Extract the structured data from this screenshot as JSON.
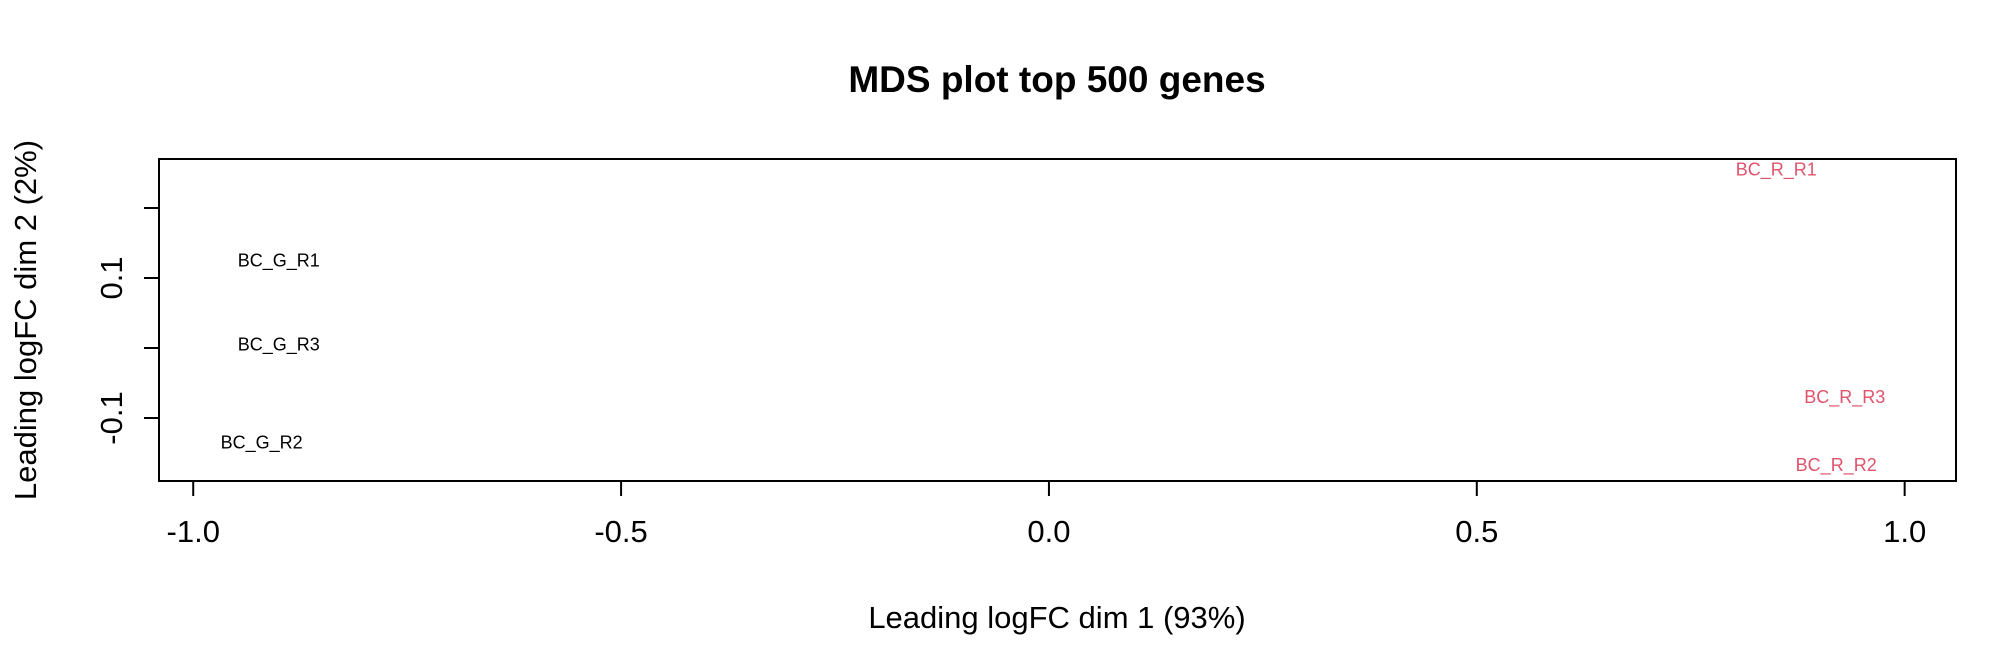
{
  "chart_data": {
    "type": "scatter",
    "title": "MDS plot top 500 genes",
    "xlabel": "Leading logFC dim 1 (93%)",
    "ylabel": "Leading logFC dim 2 (2%)",
    "xlim": [
      -1.04,
      1.06
    ],
    "ylim": [
      -0.19,
      0.27
    ],
    "x_ticks": [
      -1.0,
      -0.5,
      0.0,
      0.5,
      1.0
    ],
    "x_tick_labels": [
      "-1.0",
      "-0.5",
      "0.0",
      "0.5",
      "1.0"
    ],
    "y_ticks": [
      -0.1,
      0.0,
      0.1,
      0.2
    ],
    "y_tick_labels": [
      "-0.1",
      "",
      "0.1",
      ""
    ],
    "colors": {
      "G": "#000000",
      "R": "#DF536B"
    },
    "points": [
      {
        "label": "BC_G_R1",
        "x": -0.9,
        "y": 0.125,
        "group": "G"
      },
      {
        "label": "BC_G_R3",
        "x": -0.9,
        "y": 0.005,
        "group": "G"
      },
      {
        "label": "BC_G_R2",
        "x": -0.92,
        "y": -0.135,
        "group": "G"
      },
      {
        "label": "BC_R_R1",
        "x": 0.85,
        "y": 0.255,
        "group": "R"
      },
      {
        "label": "BC_R_R3",
        "x": 0.93,
        "y": -0.07,
        "group": "R"
      },
      {
        "label": "BC_R_R2",
        "x": 0.92,
        "y": -0.167,
        "group": "R"
      }
    ]
  }
}
